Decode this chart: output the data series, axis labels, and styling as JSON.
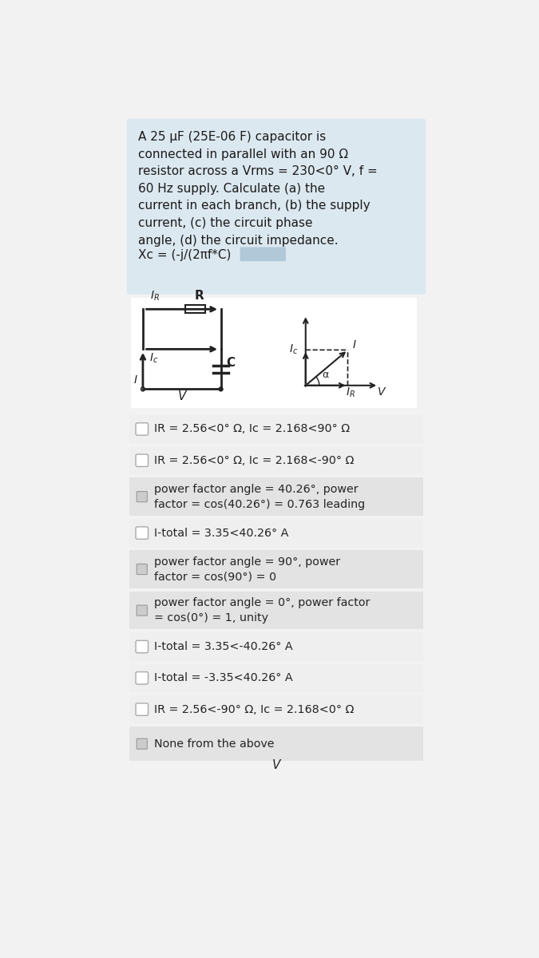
{
  "bg_color": "#dce8f0",
  "white_bg": "#ffffff",
  "light_gray": "#efefef",
  "medium_gray": "#e0e0e0",
  "question_text": "A 25 μF (25E-06 F) capacitor is\nconnected in parallel with an 90 Ω\nresistor across a Vrms = 230<0° V, f =\n60 Hz supply. Calculate (a) the\ncurrent in each branch, (b) the supply\ncurrent, (c) the circuit phase\nangle, (d) the circuit impedance.",
  "formula_text": "Xc = (-j/(2πf*C)",
  "options": [
    "IR = 2.56<0° Ω, Ic = 2.168<90° Ω",
    "IR = 2.56<0° Ω, Ic = 2.168<-90° Ω",
    "power factor angle = 40.26°, power\nfactor = cos(40.26°) = 0.763 leading",
    "I-total = 3.35<40.26° A",
    "power factor angle = 90°, power\nfactor = cos(90°) = 0",
    "power factor angle = 0°, power factor\n= cos(0°) = 1, unity",
    "I-total = 3.35<-40.26° A",
    "I-total = -3.35<40.26° A",
    "IR = 2.56<-90° Ω, Ic = 2.168<0° Ω",
    "None from the above"
  ],
  "option_bg_colors": [
    "#efefef",
    "#efefef",
    "#e3e3e3",
    "#efefef",
    "#e3e3e3",
    "#e3e3e3",
    "#efefef",
    "#efefef",
    "#efefef",
    "#e3e3e3"
  ],
  "checkbox_round": [
    true,
    true,
    false,
    true,
    false,
    false,
    true,
    true,
    true,
    false
  ],
  "text_color": "#1a1a1a",
  "overall_bg": "#f2f2f2"
}
